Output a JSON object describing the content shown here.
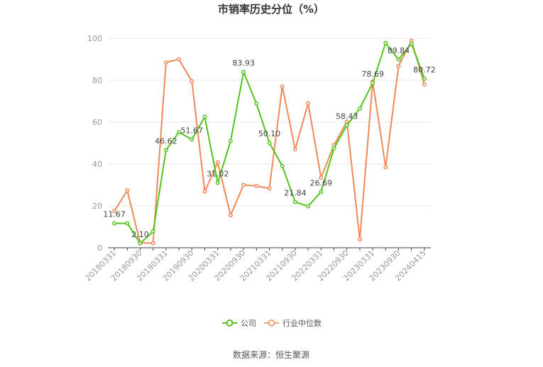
{
  "chart_data": {
    "type": "line",
    "title": "市销率历史分位（%）",
    "xlabel": "",
    "ylabel": "",
    "ylim": [
      0,
      100
    ],
    "yticks": [
      0,
      20,
      40,
      60,
      80,
      100
    ],
    "grid": true,
    "legend_position": "bottom",
    "x": [
      "20180331",
      "20180630",
      "20180930",
      "20181231",
      "20190331",
      "20190630",
      "20190930",
      "20191231",
      "20200331",
      "20200630",
      "20200930",
      "20201231",
      "20210331",
      "20210630",
      "20210930",
      "20211231",
      "20220331",
      "20220630",
      "20220930",
      "20221231",
      "20230331",
      "20230630",
      "20230930",
      "20231231",
      "20240415"
    ],
    "xtick_labels": [
      "20180331",
      "20180930",
      "20190331",
      "20190930",
      "20200331",
      "20200930",
      "20210331",
      "20210930",
      "20220331",
      "20220930",
      "20230331",
      "20230930",
      "20240415"
    ],
    "series": [
      {
        "name": "公司",
        "color": "#52c41a",
        "values": [
          11.67,
          11.67,
          2.1,
          7.8,
          46.62,
          55.2,
          51.67,
          62.5,
          31.02,
          51.0,
          83.93,
          68.8,
          50.1,
          39.0,
          21.84,
          19.8,
          26.69,
          47.5,
          58.43,
          66.5,
          78.69,
          97.8,
          89.84,
          97.5,
          80.72
        ],
        "data_labels": {
          "0": "11.67",
          "2": "2.10",
          "4": "46.62",
          "6": "51.67",
          "8": "31.02",
          "10": "83.93",
          "12": "50.10",
          "14": "21.84",
          "16": "26.69",
          "18": "58.43",
          "20": "78.69",
          "22": "89.84",
          "24": "80.72"
        }
      },
      {
        "name": "行业中位数",
        "color": "#f0885a",
        "values": [
          17.5,
          27.3,
          2.3,
          2.2,
          88.5,
          90.0,
          79.5,
          26.8,
          40.8,
          15.5,
          30.0,
          29.5,
          28.3,
          77.0,
          47.0,
          69.0,
          33.5,
          49.0,
          60.2,
          4.0,
          79.3,
          38.5,
          86.8,
          98.8,
          78.0
        ]
      }
    ]
  },
  "source_text": "数据来源：恒生聚源"
}
